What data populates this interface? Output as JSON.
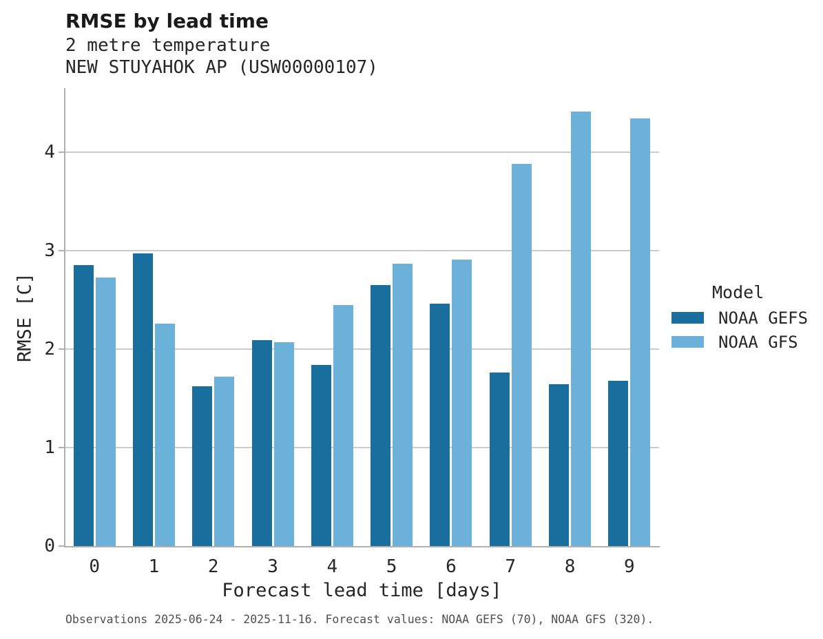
{
  "header": {
    "title": "RMSE by lead time",
    "subtitle1": "2 metre temperature",
    "subtitle2": "NEW STUYAHOK AP (USW00000107)"
  },
  "chart_data": {
    "type": "bar",
    "title": "RMSE by lead time",
    "subtitle": "2 metre temperature",
    "station": "NEW STUYAHOK AP (USW00000107)",
    "categories": [
      "0",
      "1",
      "2",
      "3",
      "4",
      "5",
      "6",
      "7",
      "8",
      "9"
    ],
    "series": [
      {
        "name": "NOAA GEFS",
        "color": "#186f9e",
        "values": [
          2.85,
          2.97,
          1.62,
          2.09,
          1.84,
          2.65,
          2.46,
          1.76,
          1.64,
          1.68
        ]
      },
      {
        "name": "NOAA GFS",
        "color": "#6bb1d9",
        "values": [
          2.73,
          2.26,
          1.72,
          2.07,
          2.45,
          2.87,
          2.91,
          3.88,
          4.41,
          4.34
        ]
      }
    ],
    "xlabel": "Forecast lead time [days]",
    "ylabel": "RMSE [C]",
    "ylim": [
      0,
      4.65
    ],
    "yticks": [
      0,
      1,
      2,
      3,
      4
    ],
    "grid": "horizontal",
    "legend_title": "Model",
    "legend_position": "right of plot"
  },
  "legend": {
    "title": "Model",
    "items": [
      {
        "label": "NOAA GEFS",
        "color": "#186f9e"
      },
      {
        "label": "NOAA GFS",
        "color": "#6bb1d9"
      }
    ]
  },
  "footer": {
    "note": "Observations 2025-06-24 - 2025-11-16. Forecast values: NOAA GEFS (70), NOAA GFS (320)."
  },
  "colors": {
    "series_dark": "#186f9e",
    "series_light": "#6bb1d9",
    "gridline": "#cccccc",
    "spine": "#b0b0b0",
    "text": "#262626",
    "footer_text": "#4f4f4f"
  }
}
